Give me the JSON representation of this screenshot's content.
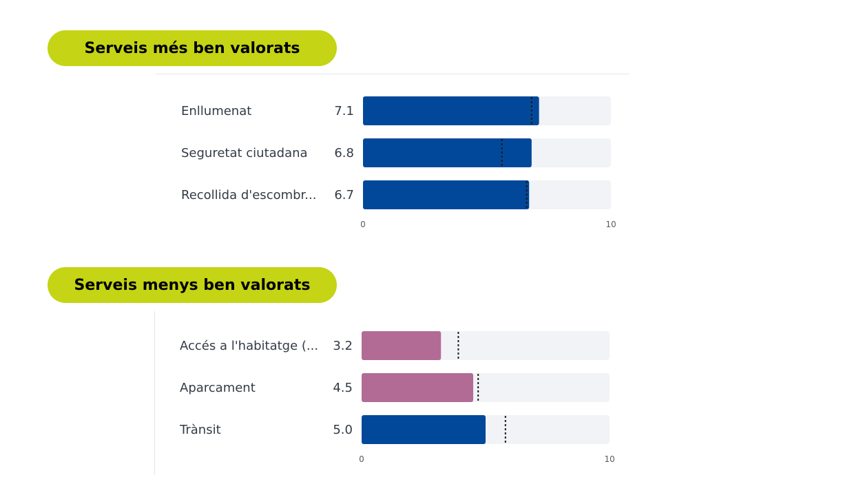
{
  "colors": {
    "highlight": "#c5d414",
    "positive": "#02489a",
    "negative": "#b26b94",
    "track": "#f1f3f6",
    "reference_line": "#1a1a1a"
  },
  "chart_data": [
    {
      "type": "bar",
      "orientation": "horizontal",
      "title": "Serveis més ben valorats",
      "categories": [
        "Enllumenat",
        "Seguretat ciutadana",
        "Recollida d'escombr..."
      ],
      "values": [
        7.1,
        6.8,
        6.7
      ],
      "value_labels": [
        "7.1",
        "6.8",
        "6.7"
      ],
      "bar_colors": [
        "#02489a",
        "#02489a",
        "#02489a"
      ],
      "reference_values": [
        6.8,
        5.6,
        6.6
      ],
      "xlim": [
        0,
        10
      ],
      "x_ticks": [
        "0",
        "10"
      ],
      "grid": false
    },
    {
      "type": "bar",
      "orientation": "horizontal",
      "title": "Serveis menys ben valorats",
      "categories": [
        "Accés a l'habitatge (...",
        "Aparcament",
        "Trànsit"
      ],
      "values": [
        3.2,
        4.5,
        5.0
      ],
      "value_labels": [
        "3.2",
        "4.5",
        "5.0"
      ],
      "bar_colors": [
        "#b26b94",
        "#b26b94",
        "#02489a"
      ],
      "reference_values": [
        3.9,
        4.7,
        5.8
      ],
      "xlim": [
        0,
        10
      ],
      "x_ticks": [
        "0",
        "10"
      ],
      "grid": false
    }
  ]
}
